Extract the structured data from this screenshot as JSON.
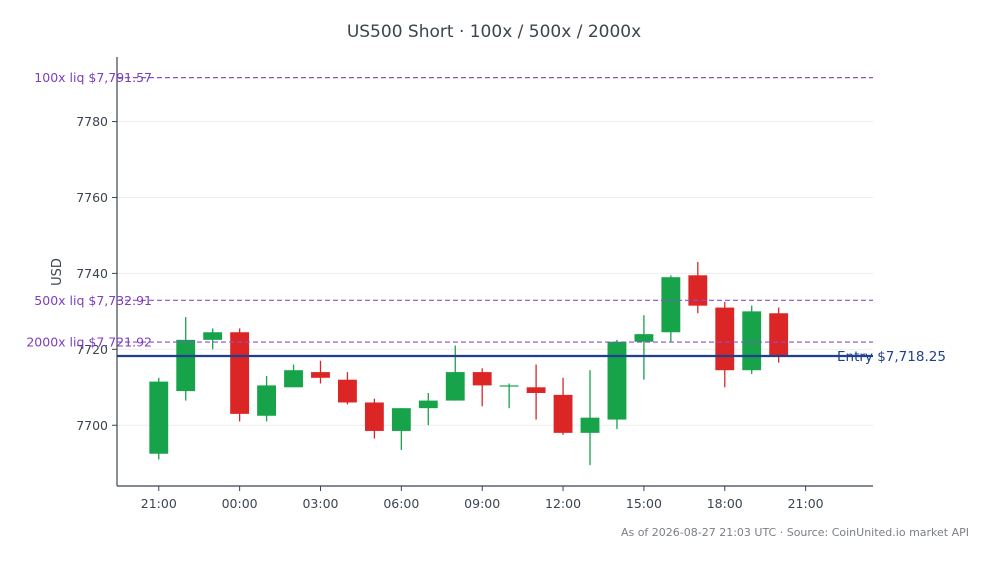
{
  "colors": {
    "up": "#16a34a",
    "down": "#dc2626",
    "entry": "#1f3f8f",
    "liq": "#8b4fd6",
    "axis": "#3b4550",
    "grid": "#eeeeee"
  },
  "footer": "As of 2026-08-27 21:03 UTC · Source: CoinUnited.io market API",
  "chart_data": {
    "type": "candlestick",
    "title": "US500 Short · 100x / 500x / 2000x",
    "ylabel": "USD",
    "xlabel": "",
    "ylim": [
      7684,
      7797
    ],
    "yticks": [
      7700,
      7720,
      7740,
      7760,
      7780
    ],
    "xlim": [
      -1.55,
      26.5
    ],
    "xticks": [
      {
        "x": 0,
        "label": "21:00"
      },
      {
        "x": 3,
        "label": "00:00"
      },
      {
        "x": 6,
        "label": "03:00"
      },
      {
        "x": 9,
        "label": "06:00"
      },
      {
        "x": 12,
        "label": "09:00"
      },
      {
        "x": 15,
        "label": "12:00"
      },
      {
        "x": 18,
        "label": "15:00"
      },
      {
        "x": 21,
        "label": "18:00"
      },
      {
        "x": 24,
        "label": "21:00"
      }
    ],
    "grid": true,
    "candles": [
      {
        "o": 7692.5,
        "h": 7712.5,
        "l": 7691.0,
        "c": 7711.5
      },
      {
        "o": 7709.0,
        "h": 7728.5,
        "l": 7706.5,
        "c": 7722.5
      },
      {
        "o": 7722.5,
        "h": 7725.5,
        "l": 7720.0,
        "c": 7724.5
      },
      {
        "o": 7724.5,
        "h": 7725.5,
        "l": 7701.0,
        "c": 7703.0
      },
      {
        "o": 7702.5,
        "h": 7713.0,
        "l": 7701.0,
        "c": 7710.5
      },
      {
        "o": 7710.0,
        "h": 7716.0,
        "l": 7710.0,
        "c": 7714.5
      },
      {
        "o": 7714.0,
        "h": 7717.0,
        "l": 7711.0,
        "c": 7712.5
      },
      {
        "o": 7712.0,
        "h": 7714.0,
        "l": 7705.5,
        "c": 7706.0
      },
      {
        "o": 7706.0,
        "h": 7707.0,
        "l": 7696.5,
        "c": 7698.5
      },
      {
        "o": 7698.5,
        "h": 7704.5,
        "l": 7693.5,
        "c": 7704.5
      },
      {
        "o": 7704.5,
        "h": 7708.5,
        "l": 7700.0,
        "c": 7706.5
      },
      {
        "o": 7706.5,
        "h": 7721.0,
        "l": 7706.5,
        "c": 7714.0
      },
      {
        "o": 7714.0,
        "h": 7715.0,
        "l": 7705.0,
        "c": 7710.5
      },
      {
        "o": 7710.5,
        "h": 7711.0,
        "l": 7704.5,
        "c": 7710.5
      },
      {
        "o": 7710.0,
        "h": 7716.0,
        "l": 7701.5,
        "c": 7708.5
      },
      {
        "o": 7708.0,
        "h": 7712.5,
        "l": 7697.5,
        "c": 7698.0
      },
      {
        "o": 7698.0,
        "h": 7714.5,
        "l": 7689.5,
        "c": 7702.0
      },
      {
        "o": 7701.5,
        "h": 7722.5,
        "l": 7699.0,
        "c": 7722.0
      },
      {
        "o": 7722.0,
        "h": 7729.0,
        "l": 7712.0,
        "c": 7724.0
      },
      {
        "o": 7724.5,
        "h": 7739.5,
        "l": 7722.0,
        "c": 7739.0
      },
      {
        "o": 7739.5,
        "h": 7743.0,
        "l": 7729.5,
        "c": 7731.5
      },
      {
        "o": 7731.0,
        "h": 7732.5,
        "l": 7710.0,
        "c": 7714.5
      },
      {
        "o": 7714.5,
        "h": 7731.5,
        "l": 7713.5,
        "c": 7730.0
      },
      {
        "o": 7729.5,
        "h": 7731.0,
        "l": 7716.5,
        "c": 7718.5
      }
    ],
    "lines": [
      {
        "label": "100x liq $7,791.57",
        "y": 7791.57,
        "style": "dashed"
      },
      {
        "label": "500x liq $7,732.91",
        "y": 7732.91,
        "style": "dashed"
      },
      {
        "label": "2000x liq $7,721.92",
        "y": 7721.92,
        "style": "dashed"
      },
      {
        "label": "Entry $7,718.25",
        "y": 7718.25,
        "style": "solid"
      }
    ]
  }
}
